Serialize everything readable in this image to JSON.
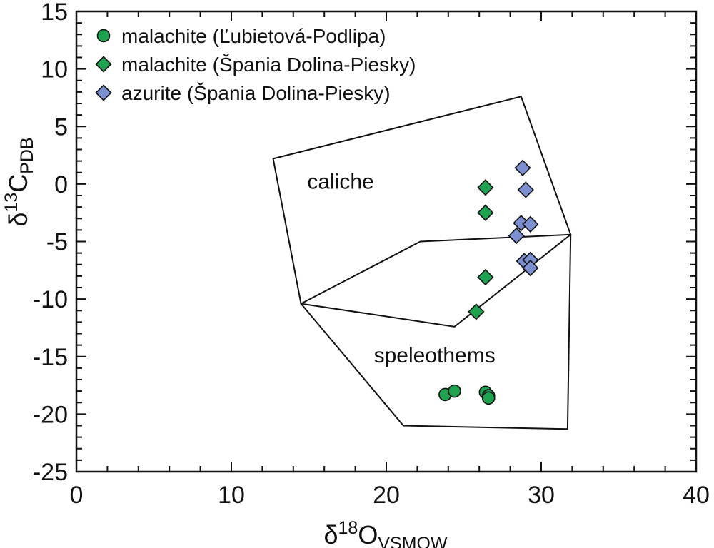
{
  "chart_data": {
    "type": "scatter",
    "xlabel": {
      "main": "δ",
      "sup": "18",
      "base": "O",
      "sub": "VSMOW"
    },
    "ylabel": {
      "main": "δ",
      "sup": "13",
      "base": "C",
      "sub": "PDB"
    },
    "xlim": [
      0,
      40
    ],
    "ylim": [
      -25,
      15
    ],
    "x_major_ticks": [
      0,
      10,
      20,
      30,
      40
    ],
    "x_tick_labels": [
      "0",
      "10",
      "20",
      "30",
      "40"
    ],
    "x_minor_step": 2,
    "y_major_ticks": [
      -25,
      -20,
      -15,
      -10,
      -5,
      0,
      5,
      10,
      15
    ],
    "y_tick_labels": [
      "-25",
      "-20",
      "-15",
      "-10",
      "-5",
      "0",
      "5",
      "10",
      "15"
    ],
    "y_minor_step": 1,
    "grid": false,
    "legend_position": "top-left",
    "series": [
      {
        "name": "malachite (Ľubietová-Podlipa)",
        "marker": "circle",
        "color": "#1fa351",
        "points": [
          [
            23.8,
            -18.3
          ],
          [
            24.4,
            -18.0
          ],
          [
            26.4,
            -18.1
          ],
          [
            26.6,
            -18.4
          ],
          [
            26.6,
            -18.6
          ]
        ]
      },
      {
        "name": "malachite (Špania Dolina-Piesky)",
        "marker": "diamond",
        "color": "#1fa351",
        "points": [
          [
            26.4,
            -0.3
          ],
          [
            26.4,
            -2.5
          ],
          [
            26.4,
            -8.1
          ],
          [
            25.8,
            -11.1
          ]
        ]
      },
      {
        "name": "azurite (Špania Dolina-Piesky)",
        "marker": "diamond",
        "color": "#7b8fd1",
        "points": [
          [
            28.8,
            1.4
          ],
          [
            29.0,
            -0.5
          ],
          [
            28.7,
            -3.4
          ],
          [
            29.3,
            -3.5
          ],
          [
            28.4,
            -4.5
          ],
          [
            28.9,
            -6.7
          ],
          [
            29.3,
            -6.6
          ],
          [
            29.3,
            -7.3
          ]
        ]
      }
    ],
    "regions": [
      {
        "label": "caliche",
        "label_at": [
          14.9,
          -0.4
        ],
        "polygon": [
          [
            12.7,
            2.2
          ],
          [
            28.7,
            7.6
          ],
          [
            31.9,
            -4.4
          ],
          [
            24.4,
            -12.4
          ],
          [
            14.5,
            -10.4
          ]
        ]
      },
      {
        "label": "speleothems",
        "label_at": [
          19.2,
          -15.5
        ],
        "polygon": [
          [
            14.5,
            -10.4
          ],
          [
            22.2,
            -5.0
          ],
          [
            31.9,
            -4.4
          ],
          [
            31.7,
            -21.3
          ],
          [
            21.1,
            -21.0
          ]
        ]
      }
    ]
  }
}
